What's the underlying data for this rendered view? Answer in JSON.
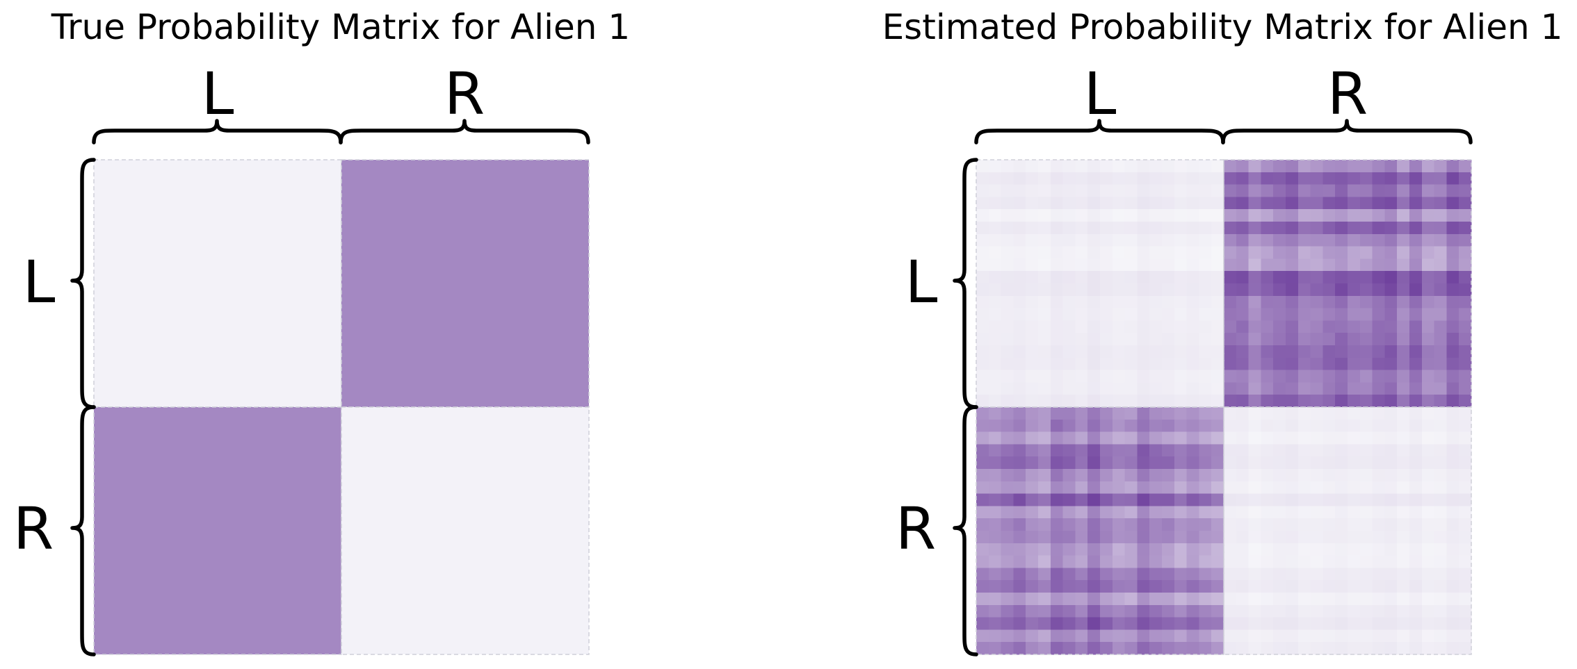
{
  "chart_data": [
    {
      "type": "heatmap",
      "title": "True Probability Matrix for Alien 1",
      "row_groups": [
        "L",
        "R"
      ],
      "col_groups": [
        "L",
        "R"
      ],
      "values": [
        [
          0.02,
          0.45
        ],
        [
          0.45,
          0.02
        ]
      ],
      "colormap": "Purples",
      "vmin": 0,
      "vmax": 1
    },
    {
      "type": "heatmap",
      "title": "Estimated Probability Matrix for Alien 1",
      "row_groups": [
        "L",
        "R"
      ],
      "col_groups": [
        "L",
        "R"
      ],
      "grid_size": 40,
      "block_means": [
        [
          0.03,
          0.45
        ],
        [
          0.45,
          0.03
        ]
      ],
      "block_ranges": [
        [
          [
            0.0,
            0.08
          ],
          [
            0.2,
            0.75
          ]
        ],
        [
          [
            0.2,
            0.75
          ],
          [
            0.0,
            0.08
          ]
        ]
      ],
      "colormap": "Purples",
      "vmin": 0,
      "vmax": 1
    }
  ],
  "colors": {
    "low": "#f7f7fa",
    "high": "#3f007d",
    "true_off_diagonal": "#b3b3d6",
    "brace": "#000000"
  }
}
